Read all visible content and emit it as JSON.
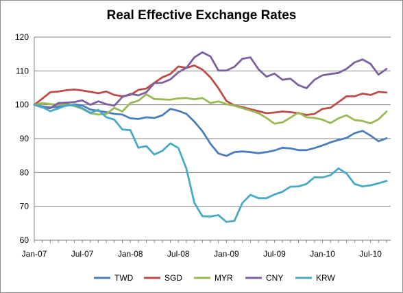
{
  "chart_data": {
    "type": "line",
    "title": "Real Effective Exchange Rates",
    "xlabel": "",
    "ylabel": "",
    "ylim": [
      60,
      120
    ],
    "yticks": [
      60,
      70,
      80,
      90,
      100,
      110,
      120
    ],
    "xticks": [
      {
        "label": "Jan-07",
        "index": 0
      },
      {
        "label": "Jul-07",
        "index": 6
      },
      {
        "label": "Jan-08",
        "index": 12
      },
      {
        "label": "Jul-08",
        "index": 18
      },
      {
        "label": "Jan-09",
        "index": 24
      },
      {
        "label": "Jul-09",
        "index": 30
      },
      {
        "label": "Jan-10",
        "index": 36
      },
      {
        "label": "Jul-10",
        "index": 42
      }
    ],
    "n_points": 45,
    "grid": "horizontal",
    "legend": "bottom",
    "series": [
      {
        "name": "TWD",
        "color": "#4a7ebb",
        "values": [
          100,
          99.5,
          99.2,
          99.4,
          99.7,
          100.1,
          99.8,
          98.6,
          98.2,
          97.8,
          97.3,
          97.1,
          96.0,
          95.8,
          96.3,
          96.1,
          96.9,
          98.8,
          98.2,
          97.3,
          95.0,
          92.2,
          88.5,
          85.6,
          84.9,
          86.0,
          86.2,
          86.0,
          85.7,
          86.0,
          86.5,
          87.3,
          87.1,
          86.6,
          86.6,
          87.2,
          88.0,
          88.9,
          89.6,
          90.2,
          91.6,
          92.3,
          90.9,
          89.2,
          90.1
        ]
      },
      {
        "name": "SGD",
        "color": "#be4b48",
        "values": [
          100,
          101.8,
          103.7,
          103.9,
          104.3,
          104.5,
          104.2,
          103.8,
          103.4,
          103.9,
          102.9,
          102.5,
          102.9,
          104.4,
          104.8,
          106.5,
          108.1,
          109.1,
          111.3,
          110.9,
          111.6,
          110.4,
          108.1,
          104.9,
          101.1,
          99.8,
          99.3,
          98.7,
          98.1,
          97.5,
          97.7,
          98.0,
          97.8,
          97.5,
          97.0,
          97.3,
          98.8,
          99.1,
          100.8,
          102.5,
          102.5,
          103.3,
          102.9,
          103.8,
          103.6
        ]
      },
      {
        "name": "MYR",
        "color": "#98b954",
        "values": [
          100,
          100.5,
          100.2,
          100.0,
          100.3,
          99.6,
          98.8,
          97.5,
          97.1,
          97.3,
          99.1,
          98.0,
          100.5,
          101.2,
          103.1,
          101.7,
          101.6,
          101.5,
          101.9,
          102.0,
          101.6,
          102.0,
          100.5,
          101.0,
          100.2,
          99.7,
          99.0,
          98.3,
          97.5,
          96.1,
          94.4,
          94.8,
          96.2,
          97.7,
          96.3,
          96.1,
          95.6,
          94.6,
          96.0,
          96.9,
          95.5,
          95.2,
          94.5,
          95.7,
          98.0
        ]
      },
      {
        "name": "CNY",
        "color": "#7d60a0",
        "values": [
          100,
          99.2,
          99.0,
          100.5,
          100.6,
          100.8,
          101.3,
          100.0,
          101.0,
          100.2,
          99.7,
          102.3,
          103.2,
          102.8,
          103.7,
          106.4,
          106.5,
          107.5,
          109.6,
          110.9,
          114.0,
          115.5,
          114.3,
          110.1,
          110.1,
          111.2,
          113.6,
          114.0,
          110.5,
          108.3,
          109.2,
          107.4,
          107.7,
          105.8,
          104.9,
          107.4,
          108.7,
          109.1,
          109.4,
          110.6,
          112.5,
          113.4,
          112.1,
          108.9,
          110.6
        ]
      },
      {
        "name": "KRW",
        "color": "#46aac5",
        "values": [
          100,
          99.3,
          98.1,
          98.9,
          99.8,
          99.9,
          99.0,
          97.6,
          98.5,
          96.3,
          95.6,
          92.7,
          92.5,
          87.3,
          87.8,
          85.3,
          86.4,
          88.6,
          87.2,
          81.1,
          71.0,
          67.1,
          67.0,
          67.4,
          65.4,
          65.7,
          71.0,
          73.4,
          72.4,
          72.4,
          73.5,
          74.3,
          75.8,
          75.9,
          76.6,
          78.6,
          78.5,
          79.2,
          81.2,
          79.7,
          76.6,
          75.9,
          76.2,
          76.8,
          77.5
        ]
      }
    ]
  }
}
